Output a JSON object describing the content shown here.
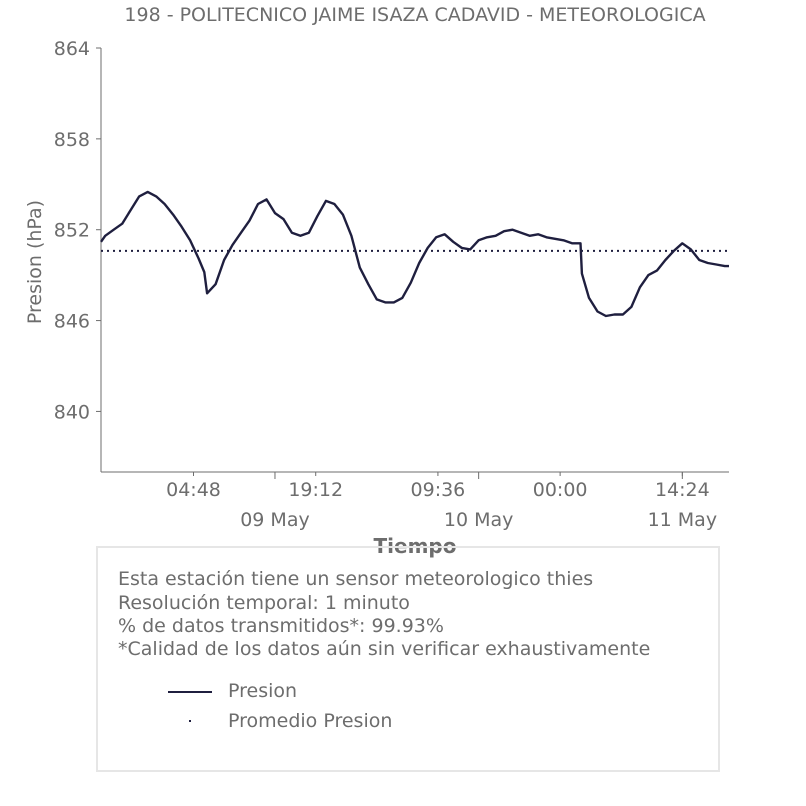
{
  "chart_data": {
    "type": "line",
    "title": "198 - POLITECNICO JAIME ISAZA CADAVID - METEOROLOGICA",
    "xlabel": "Tiempo",
    "ylabel": "Presion (hPa)",
    "ylim": [
      836,
      864
    ],
    "yticks": [
      "864",
      "858",
      "852",
      "846",
      "840"
    ],
    "xlim": [
      "2024-05-08 03:30",
      "2024-05-11 05:30"
    ],
    "xticks": [
      "04:48",
      "19:12",
      "09:36",
      "00:00",
      "14:24"
    ],
    "date_labels": [
      "09 May",
      "10 May",
      "11 May"
    ],
    "grid": false,
    "series": [
      {
        "name": "Presion",
        "color": "#1f1f3f",
        "x": [
          "2024-05-08 03:30",
          "2024-05-08 04:00",
          "2024-05-08 05:00",
          "2024-05-08 06:00",
          "2024-05-08 07:00",
          "2024-05-08 08:00",
          "2024-05-08 09:00",
          "2024-05-08 10:00",
          "2024-05-08 11:00",
          "2024-05-08 12:00",
          "2024-05-08 13:00",
          "2024-05-08 14:00",
          "2024-05-08 15:00",
          "2024-05-08 15:40",
          "2024-05-08 16:00",
          "2024-05-08 17:00",
          "2024-05-08 18:00",
          "2024-05-08 19:00",
          "2024-05-08 20:00",
          "2024-05-08 21:00",
          "2024-05-08 22:00",
          "2024-05-08 23:00",
          "2024-05-09 00:00",
          "2024-05-09 01:00",
          "2024-05-09 02:00",
          "2024-05-09 03:00",
          "2024-05-09 04:00",
          "2024-05-09 05:00",
          "2024-05-09 06:00",
          "2024-05-09 07:00",
          "2024-05-09 08:00",
          "2024-05-09 09:00",
          "2024-05-09 10:00",
          "2024-05-09 11:00",
          "2024-05-09 12:00",
          "2024-05-09 13:00",
          "2024-05-09 14:00",
          "2024-05-09 15:00",
          "2024-05-09 16:00",
          "2024-05-09 17:00",
          "2024-05-09 18:00",
          "2024-05-09 19:00",
          "2024-05-09 20:00",
          "2024-05-09 21:00",
          "2024-05-09 22:00",
          "2024-05-09 23:00",
          "2024-05-10 00:00",
          "2024-05-10 01:00",
          "2024-05-10 02:00",
          "2024-05-10 03:00",
          "2024-05-10 04:00",
          "2024-05-10 05:00",
          "2024-05-10 06:00",
          "2024-05-10 07:00",
          "2024-05-10 08:00",
          "2024-05-10 09:00",
          "2024-05-10 10:00",
          "2024-05-10 11:00",
          "2024-05-10 12:00",
          "2024-05-10 12:10",
          "2024-05-10 13:00",
          "2024-05-10 14:00",
          "2024-05-10 15:00",
          "2024-05-10 16:00",
          "2024-05-10 17:00",
          "2024-05-10 18:00",
          "2024-05-10 19:00",
          "2024-05-10 20:00",
          "2024-05-10 21:00",
          "2024-05-10 22:00",
          "2024-05-10 23:00",
          "2024-05-11 00:00",
          "2024-05-11 01:00",
          "2024-05-11 02:00",
          "2024-05-11 03:00",
          "2024-05-11 04:00",
          "2024-05-11 05:00",
          "2024-05-11 05:30"
        ],
        "y": [
          851.2,
          851.6,
          852.0,
          852.4,
          853.3,
          854.2,
          854.5,
          854.2,
          853.7,
          853.0,
          852.2,
          851.3,
          850.1,
          849.2,
          847.8,
          848.4,
          850.0,
          851.0,
          851.8,
          852.6,
          853.7,
          854.0,
          853.1,
          852.7,
          851.8,
          851.6,
          851.8,
          852.9,
          853.9,
          853.7,
          853.0,
          851.6,
          849.5,
          848.4,
          847.4,
          847.2,
          847.2,
          847.5,
          848.5,
          849.8,
          850.8,
          851.5,
          851.7,
          851.2,
          850.8,
          850.7,
          851.3,
          851.5,
          851.6,
          851.9,
          852.0,
          851.8,
          851.6,
          851.7,
          851.5,
          851.4,
          851.3,
          851.1,
          851.1,
          849.1,
          847.5,
          846.6,
          846.3,
          846.4,
          846.4,
          846.9,
          848.2,
          849.0,
          849.3,
          850.0,
          850.6,
          851.1,
          850.7,
          850.0,
          849.8,
          849.7,
          849.6,
          849.6
        ]
      },
      {
        "name": "Promedio Presion",
        "color": "#1f1f3f",
        "value": 850.6
      }
    ]
  },
  "info": {
    "line1": "Esta estación tiene un sensor meteorologico thies",
    "line2": "Resolución temporal: 1 minuto",
    "line3": "% de datos transmitidos*: 99.93%",
    "line4": "*Calidad de los datos aún sin verificar exhaustivamente"
  },
  "legend": {
    "series_label": "Presion",
    "mean_label": "Promedio Presion"
  }
}
